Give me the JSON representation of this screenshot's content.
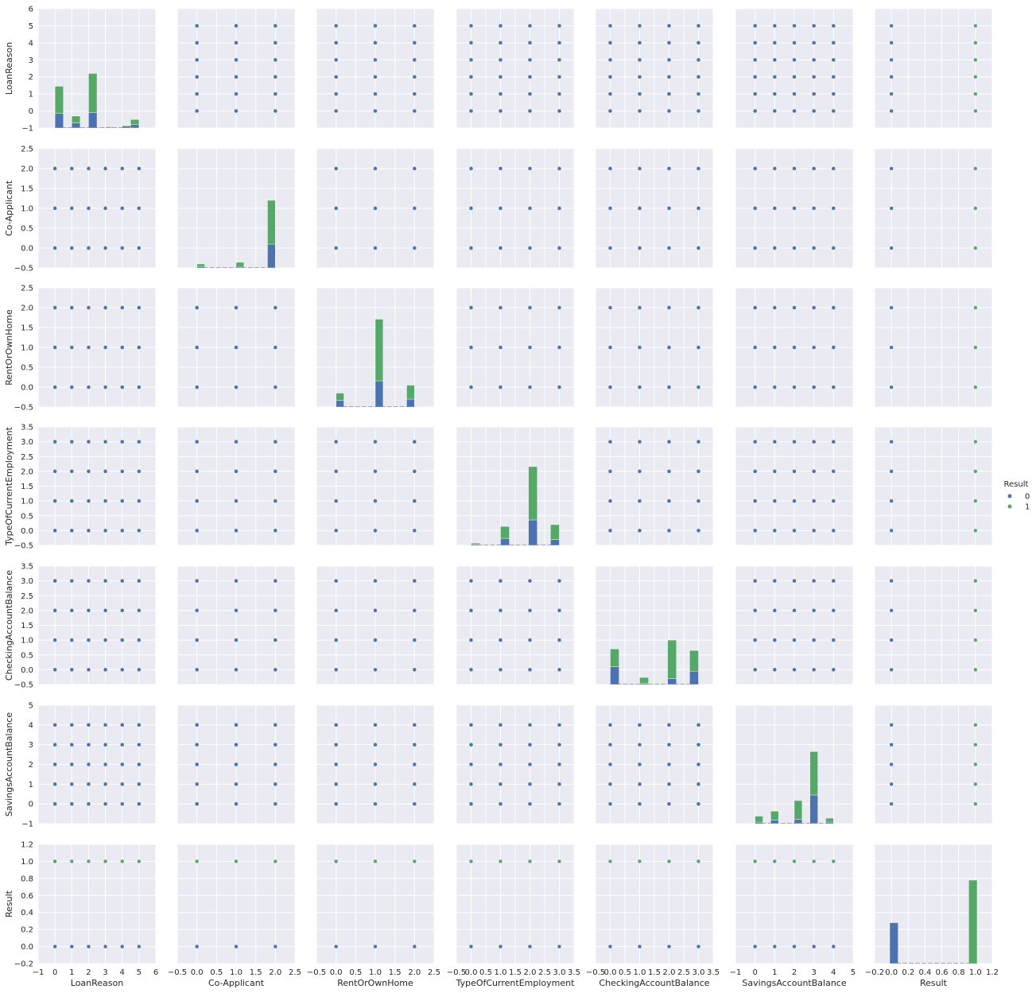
{
  "chart_data": {
    "type": "scatter",
    "subtype": "pairplot",
    "variables": [
      "LoanReason",
      "Co-Applicant",
      "RentOrOwnHome",
      "TypeOfCurrentEmployment",
      "CheckingAccountBalance",
      "SavingsAccountBalance",
      "Result"
    ],
    "hue": "Result",
    "legend": {
      "title": "Result",
      "placement": "right-center",
      "entries": [
        {
          "label": "0",
          "color": "#4C72B0"
        },
        {
          "label": "1",
          "color": "#55A868"
        }
      ]
    },
    "colors": {
      "panel_bg": "#EAEAF2",
      "grid": "#FFFFFF",
      "hue_0": "#4C72B0",
      "hue_1": "#55A868"
    },
    "grid": true,
    "axes": [
      {
        "name": "LoanReason",
        "lim": [
          -1,
          6
        ],
        "ticks": [
          -1,
          0,
          1,
          2,
          3,
          4,
          5,
          6
        ],
        "tick_labels": [
          "−1",
          "0",
          "1",
          "2",
          "3",
          "4",
          "5",
          "6"
        ]
      },
      {
        "name": "Co-Applicant",
        "lim": [
          -0.5,
          2.5
        ],
        "ticks": [
          -0.5,
          0.0,
          0.5,
          1.0,
          1.5,
          2.0,
          2.5
        ],
        "tick_labels": [
          "−0.5",
          "0.0",
          "0.5",
          "1.0",
          "1.5",
          "2.0",
          "2.5"
        ]
      },
      {
        "name": "RentOrOwnHome",
        "lim": [
          -0.5,
          2.5
        ],
        "ticks": [
          -0.5,
          0.0,
          0.5,
          1.0,
          1.5,
          2.0,
          2.5
        ],
        "tick_labels": [
          "−0.5",
          "0.0",
          "0.5",
          "1.0",
          "1.5",
          "2.0",
          "2.5"
        ]
      },
      {
        "name": "TypeOfCurrentEmployment",
        "lim": [
          -0.5,
          3.5
        ],
        "ticks": [
          -0.5,
          0.0,
          0.5,
          1.0,
          1.5,
          2.0,
          2.5,
          3.0,
          3.5
        ],
        "tick_labels": [
          "−0.5",
          "0.0",
          "0.5",
          "1.0",
          "1.5",
          "2.0",
          "2.5",
          "3.0",
          "3.5"
        ]
      },
      {
        "name": "CheckingAccountBalance",
        "lim": [
          -0.5,
          3.5
        ],
        "ticks": [
          -0.5,
          0.0,
          0.5,
          1.0,
          1.5,
          2.0,
          2.5,
          3.0,
          3.5
        ],
        "tick_labels": [
          "−0.5",
          "0.0",
          "0.5",
          "1.0",
          "1.5",
          "2.0",
          "2.5",
          "3.0",
          "3.5"
        ]
      },
      {
        "name": "SavingsAccountBalance",
        "lim": [
          -1,
          5
        ],
        "ticks": [
          -1,
          0,
          1,
          2,
          3,
          4,
          5
        ],
        "tick_labels": [
          "−1",
          "0",
          "1",
          "2",
          "3",
          "4",
          "5"
        ]
      },
      {
        "name": "Result",
        "lim": [
          -0.2,
          1.2
        ],
        "ticks": [
          -0.2,
          0.0,
          0.2,
          0.4,
          0.6,
          0.8,
          1.0,
          1.2
        ],
        "tick_labels": [
          "−0.2",
          "0.0",
          "0.2",
          "0.4",
          "0.6",
          "0.8",
          "1.0",
          "1.2"
        ]
      }
    ],
    "diagonal_histograms": [
      {
        "variable": "LoanReason",
        "bins": [
          {
            "x0": 0,
            "x1": 0.5,
            "hue_0": 0.85,
            "hue_1": 1.6
          },
          {
            "x0": 1,
            "x1": 1.5,
            "hue_0": 0.3,
            "hue_1": 0.4
          },
          {
            "x0": 2,
            "x1": 2.5,
            "hue_0": 0.9,
            "hue_1": 2.3
          },
          {
            "x0": 3,
            "x1": 3.5,
            "hue_0": 0.02,
            "hue_1": 0.05
          },
          {
            "x0": 4,
            "x1": 4.5,
            "hue_0": 0.1,
            "hue_1": 0.05
          },
          {
            "x0": 4.5,
            "x1": 5.0,
            "hue_0": 0.2,
            "hue_1": 0.3
          }
        ]
      },
      {
        "variable": "Co-Applicant",
        "bins": [
          {
            "x0": 0.0,
            "x1": 0.2,
            "hue_0": 0.04,
            "hue_1": 0.06
          },
          {
            "x0": 1.0,
            "x1": 1.2,
            "hue_0": 0.02,
            "hue_1": 0.12
          },
          {
            "x0": 1.8,
            "x1": 2.0,
            "hue_0": 0.6,
            "hue_1": 1.1
          }
        ]
      },
      {
        "variable": "RentOrOwnHome",
        "bins": [
          {
            "x0": 0.0,
            "x1": 0.2,
            "hue_0": 0.17,
            "hue_1": 0.18
          },
          {
            "x0": 1.0,
            "x1": 1.2,
            "hue_0": 0.66,
            "hue_1": 1.55
          },
          {
            "x0": 1.8,
            "x1": 2.0,
            "hue_0": 0.2,
            "hue_1": 0.35
          }
        ]
      },
      {
        "variable": "TypeOfCurrentEmployment",
        "bins": [
          {
            "x0": 0.0,
            "x1": 0.3,
            "hue_0": 0.04,
            "hue_1": 0.04
          },
          {
            "x0": 1.0,
            "x1": 1.3,
            "hue_0": 0.24,
            "hue_1": 0.4
          },
          {
            "x0": 1.95,
            "x1": 2.25,
            "hue_0": 0.86,
            "hue_1": 1.8
          },
          {
            "x0": 2.7,
            "x1": 3.0,
            "hue_0": 0.2,
            "hue_1": 0.5
          }
        ]
      },
      {
        "variable": "CheckingAccountBalance",
        "bins": [
          {
            "x0": 0.0,
            "x1": 0.3,
            "hue_0": 0.6,
            "hue_1": 0.6
          },
          {
            "x0": 1.0,
            "x1": 1.3,
            "hue_0": 0.04,
            "hue_1": 0.2
          },
          {
            "x0": 1.95,
            "x1": 2.25,
            "hue_0": 0.2,
            "hue_1": 1.3
          },
          {
            "x0": 2.7,
            "x1": 3.0,
            "hue_0": 0.45,
            "hue_1": 0.7
          }
        ]
      },
      {
        "variable": "SavingsAccountBalance",
        "bins": [
          {
            "x0": 0.0,
            "x1": 0.4,
            "hue_0": 0.08,
            "hue_1": 0.3
          },
          {
            "x0": 0.8,
            "x1": 1.2,
            "hue_0": 0.18,
            "hue_1": 0.45
          },
          {
            "x0": 2.0,
            "x1": 2.4,
            "hue_0": 0.22,
            "hue_1": 0.95
          },
          {
            "x0": 2.8,
            "x1": 3.2,
            "hue_0": 1.45,
            "hue_1": 2.2
          },
          {
            "x0": 3.6,
            "x1": 4.0,
            "hue_0": 0.08,
            "hue_1": 0.2
          }
        ]
      },
      {
        "variable": "Result",
        "bins": [
          {
            "x0": -0.02,
            "x1": 0.08,
            "hue_0": 0.48,
            "hue_1": 0.0
          },
          {
            "x0": 0.92,
            "x1": 1.02,
            "hue_0": 0.0,
            "hue_1": 0.98
          }
        ]
      }
    ],
    "scatter_values": {
      "LoanReason": {
        "0": [
          0,
          1,
          2,
          3,
          4,
          5
        ],
        "1": [
          0,
          1,
          2,
          3,
          4,
          5
        ]
      },
      "Co-Applicant": {
        "0": [
          0,
          1,
          2
        ],
        "1": [
          0,
          1,
          2
        ]
      },
      "RentOrOwnHome": {
        "0": [
          0,
          1,
          2
        ],
        "1": [
          0,
          1,
          2
        ]
      },
      "TypeOfCurrentEmployment": {
        "0": [
          0,
          1,
          2,
          3
        ],
        "1": [
          0,
          1,
          2,
          3
        ]
      },
      "CheckingAccountBalance": {
        "0": [
          0,
          1,
          2,
          3
        ],
        "1": [
          0,
          1,
          2,
          3
        ]
      },
      "SavingsAccountBalance": {
        "0": [
          0,
          1,
          2,
          3,
          4
        ],
        "1": [
          0,
          1,
          2,
          3,
          4
        ]
      },
      "Result": {
        "0": [
          0
        ],
        "1": [
          1
        ]
      }
    }
  }
}
